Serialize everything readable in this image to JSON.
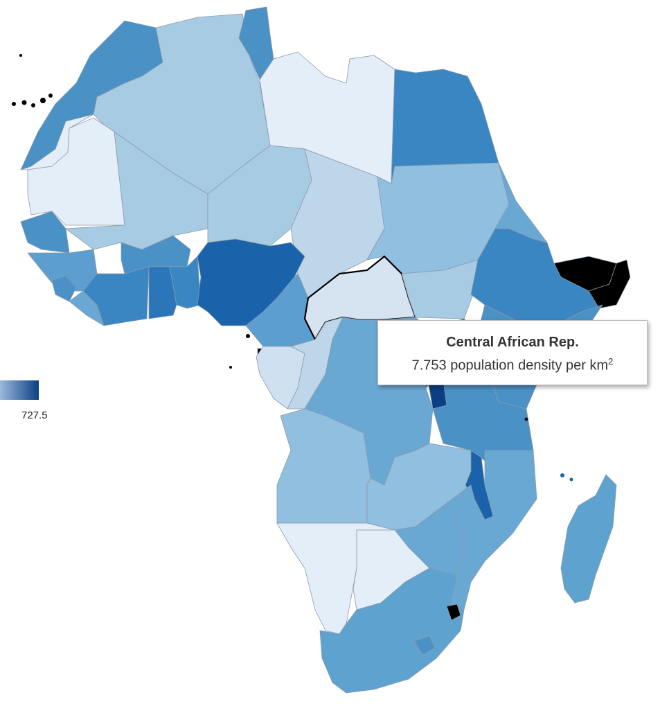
{
  "tooltip": {
    "country": "Central African Rep.",
    "value": "7.753",
    "label": "population density per km",
    "unit_exponent": "2"
  },
  "legend": {
    "max_label": "727.5",
    "color_low": "#9cb8dc",
    "color_high": "#0b3f84"
  },
  "colors": {
    "highlight_border": "#000000",
    "no_data": "#000000"
  }
}
